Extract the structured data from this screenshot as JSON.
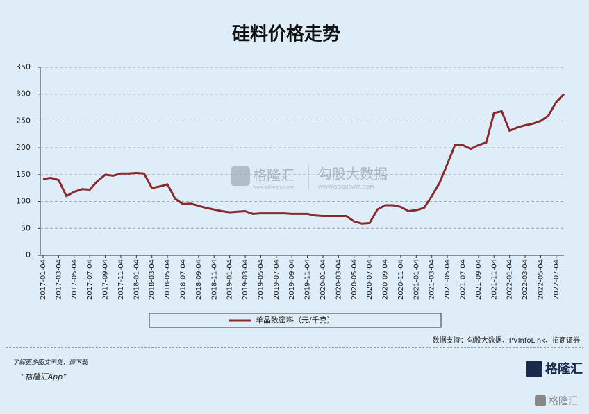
{
  "chart_data": {
    "type": "line",
    "title": "硅料价格走势",
    "categories": [
      "2017-01-04",
      null,
      "2017-03-04",
      null,
      "2017-05-04",
      null,
      "2017-07-04",
      null,
      "2017-09-04",
      null,
      "2017-11-04",
      null,
      "2018-01-04",
      null,
      "2018-03-04",
      null,
      "2018-05-04",
      null,
      "2018-07-04",
      null,
      "2018-09-04",
      null,
      "2018-11-04",
      null,
      "2019-01-04",
      null,
      "2019-03-04",
      null,
      "2019-05-04",
      null,
      "2019-07-04",
      null,
      "2019-09-04",
      null,
      "2019-11-04",
      null,
      "2020-01-04",
      null,
      "2020-03-04",
      null,
      "2020-05-04",
      null,
      "2020-07-04",
      null,
      "2020-09-04",
      null,
      "2020-11-04",
      null,
      "2021-01-04",
      null,
      "2021-03-04",
      null,
      "2021-05-04",
      null,
      "2021-07-04",
      null,
      "2021-09-04",
      null,
      "2021-11-04",
      null,
      "2022-01-04",
      null,
      "2022-03-04",
      null,
      "2022-05-04",
      null,
      "2022-07-04",
      null
    ],
    "series": [
      {
        "name": "单晶致密料（元/千克）",
        "color": "#8b2a2e",
        "values": [
          142,
          144,
          140,
          110,
          118,
          123,
          122,
          138,
          150,
          148,
          152,
          152,
          153,
          152,
          125,
          128,
          132,
          105,
          95,
          96,
          92,
          88,
          85,
          82,
          80,
          81,
          82,
          77,
          78,
          78,
          78,
          78,
          77,
          77,
          77,
          74,
          73,
          73,
          73,
          73,
          63,
          59,
          60,
          85,
          93,
          93,
          90,
          82,
          84,
          88,
          110,
          135,
          170,
          206,
          205,
          198,
          205,
          210,
          265,
          268,
          232,
          238,
          242,
          245,
          250,
          260,
          285,
          300
        ]
      }
    ],
    "ylim": [
      0,
      350
    ],
    "yticks": [
      0,
      50,
      100,
      150,
      200,
      250,
      300,
      350
    ],
    "grid": true,
    "source": "数据支持：勾股大数据、PVInfoLink、招商证券"
  },
  "footer": {
    "line1": "了解更多图文干货，请下载",
    "line2": "“格隆汇App”",
    "logo": "格隆汇",
    "corner_logo": "格隆汇"
  },
  "watermark": {
    "brand1": "格隆汇",
    "site1": "www.gelonghui.com",
    "brand2": "勾股大数据",
    "site2": "WWW.GOGUDATA.COM"
  }
}
